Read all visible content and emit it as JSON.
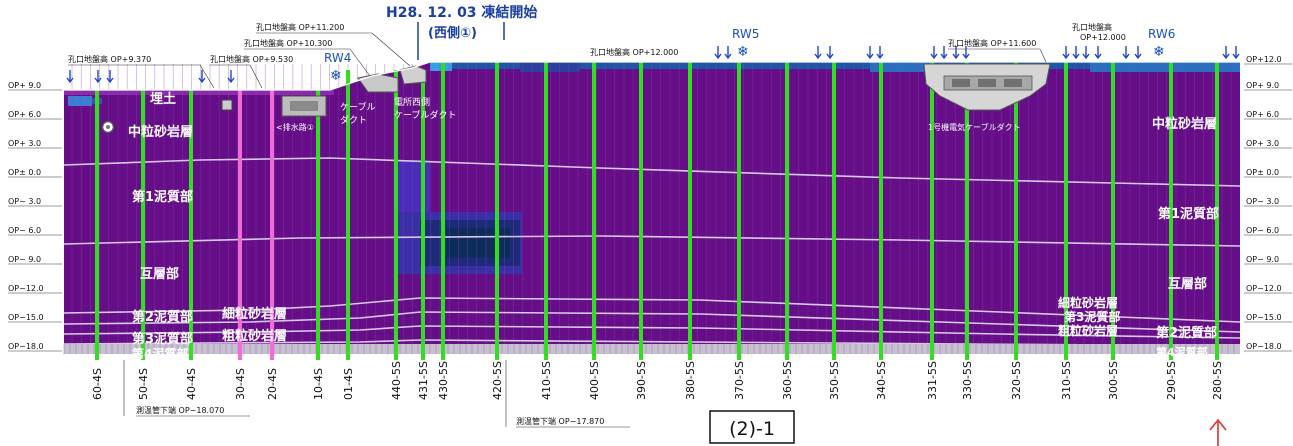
{
  "header": {
    "date_title": "H28. 12. 03 凍結開始",
    "side_title": "(西側①)"
  },
  "panel_id": "(2)-1",
  "elevation_labels": [
    "OP+ 9.0",
    "OP+ 6.0",
    "OP+ 3.0",
    "OP± 0.0",
    "OP− 3.0",
    "OP− 6.0",
    "OP− 9.0",
    "OP−12.0",
    "OP−15.0",
    "OP−18.0"
  ],
  "right_top_label": "OP+12.0",
  "pipe_labels": [
    "60-4S",
    "50-4S",
    "40-4S",
    "30-4S",
    "20-4S",
    "10-4S",
    "01-4S",
    "440-5S",
    "431-5S",
    "430-5S",
    "420-5S",
    "410-5S",
    "400-5S",
    "390-5S",
    "380-5S",
    "370-5S",
    "360-5S",
    "350-5S",
    "340-5S",
    "331-5S",
    "330-5S",
    "320-5S",
    "310-5S",
    "300-5S",
    "290-5S",
    "280-5S"
  ],
  "rw_labels": [
    "RW4",
    "RW5",
    "RW6"
  ],
  "ground_labels": {
    "g1": "孔口地盤高 OP+9.370",
    "g2": "孔口地盤高 OP+9.530",
    "g3": "孔口地盤高 OP+10.300",
    "g4": "孔口地盤高 OP+11.200",
    "g5": "孔口地盤高 OP+12.000",
    "g6": "孔口地盤高 OP+11.600",
    "g7": "孔口地盤高",
    "g8": "OP+12.000"
  },
  "bottom_labels": {
    "b1": "測温管下端 OP−18.070",
    "b2": "測温管下端 OP−17.870"
  },
  "structure_labels": {
    "s1": "埋土",
    "s2": "<排水路①",
    "s3": "ケーブル",
    "s4": "ダクト",
    "s5": "電所西側",
    "s6": "ケーブルダクト",
    "s7": "1号機電気ケーブルダクト"
  },
  "layer_labels": {
    "l1": "中粒砂岩層",
    "l2": "第1泥質部",
    "l3": "互層部",
    "l4": "第2泥質部",
    "l5": "第3泥質部",
    "l6": "第4泥質部",
    "l7": "細粒砂岩層",
    "l8": "粗粒砂岩層",
    "r1": "中粒砂岩層",
    "r2": "第1泥質部",
    "r3": "互層部",
    "r4": "細粒砂岩層",
    "r5": "第3泥質部",
    "r6": "粗粒砂岩層",
    "r7": "第2泥質部",
    "r8": "第4泥質部"
  },
  "colors": {
    "ground_purple": "#660e88",
    "cold_blue": "#1f56a8",
    "freeze_line": "#33dd22",
    "pink_line": "#f36bd6"
  }
}
